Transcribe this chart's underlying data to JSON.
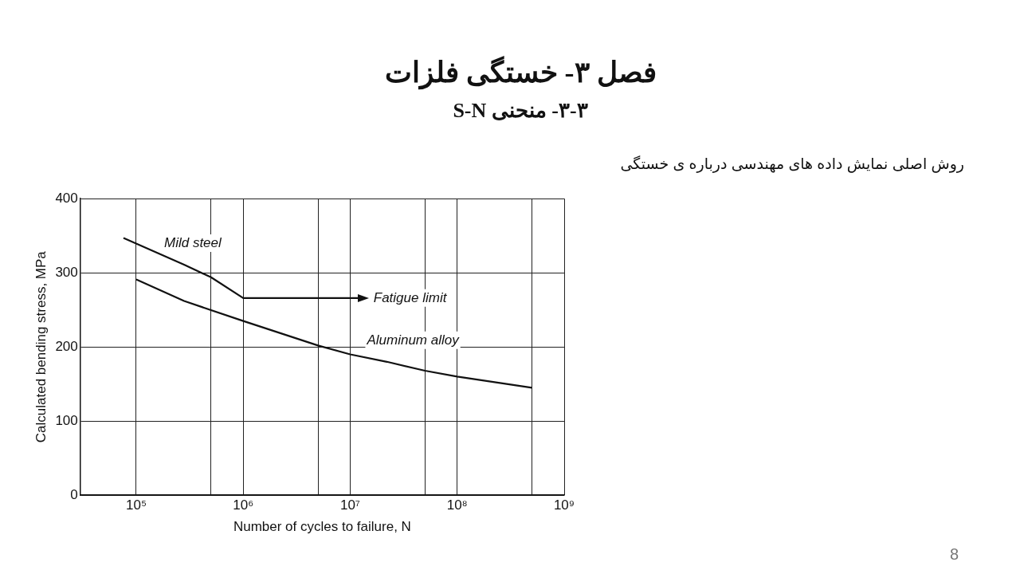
{
  "chart_data": {
    "type": "line",
    "title": "فصل ۳- خستگی فلزات",
    "subtitle": "۳-۳- منحنی S-N",
    "xlabel": "Number of cycles to failure, N",
    "ylabel": "Calculated bending stress, MPa",
    "log": "x",
    "grid": true,
    "legend": false,
    "xlim": [
      30000,
      1000000000
    ],
    "xticks": [
      {
        "value": 100000,
        "label": "10⁵"
      },
      {
        "value": 500000,
        "label": null
      },
      {
        "value": 1000000,
        "label": "10⁶"
      },
      {
        "value": 5000000,
        "label": null
      },
      {
        "value": 10000000,
        "label": "10⁷"
      },
      {
        "value": 50000000,
        "label": null
      },
      {
        "value": 100000000,
        "label": "10⁸"
      },
      {
        "value": 500000000,
        "label": null
      },
      {
        "value": 1000000000,
        "label": "10⁹"
      }
    ],
    "ylim": [
      0,
      400
    ],
    "yticks": [
      0,
      100,
      200,
      300,
      400
    ],
    "series": [
      {
        "name": "Mild steel",
        "color": "#111111",
        "x": [
          76000,
          280000,
          500000,
          1000000,
          13000000
        ],
        "values": [
          347,
          311,
          294,
          266,
          266
        ]
      },
      {
        "name": "Aluminum alloy",
        "color": "#111111",
        "x": [
          100000,
          280000,
          1000000,
          5000000,
          10000000,
          22000000,
          50000000,
          100000000,
          290000000,
          500000000
        ],
        "values": [
          291,
          262,
          235,
          202,
          190,
          180,
          168,
          160,
          150,
          145
        ]
      }
    ],
    "annotations": [
      "Fatigue limit",
      "روش اصلی نمایش داده های مهندسی درباره ی خستگی",
      "8"
    ]
  }
}
